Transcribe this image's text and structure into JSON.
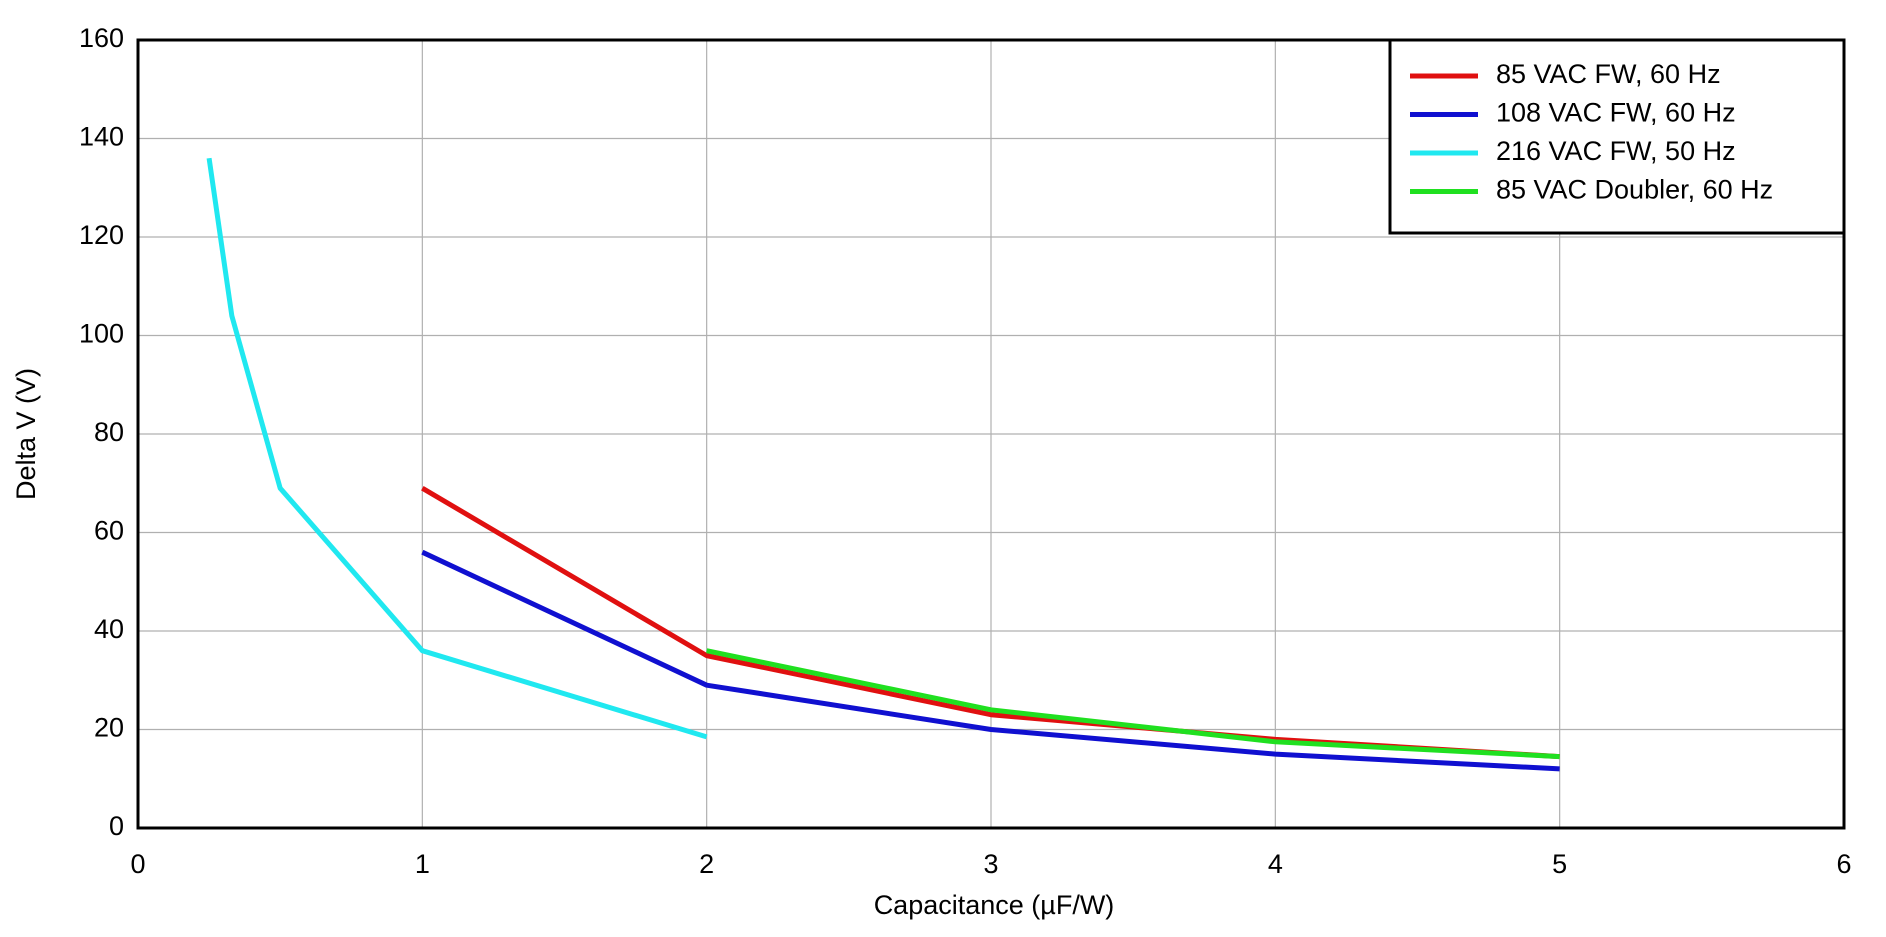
{
  "chart_data": {
    "type": "line",
    "x_label": "Capacitance (µF/W)",
    "y_label": "Delta V (V)",
    "xlim": [
      0,
      6
    ],
    "xticks": [
      0,
      1,
      2,
      3,
      4,
      5,
      6
    ],
    "ylim": [
      0,
      160
    ],
    "yticks": [
      0,
      20,
      40,
      60,
      80,
      100,
      120,
      140,
      160
    ],
    "grid": true,
    "legend": "upper right",
    "series": [
      {
        "name": "85 VAC FW, 60 Hz",
        "color": "#e01010",
        "x": [
          1,
          2,
          3,
          4,
          5
        ],
        "values": [
          69,
          35,
          23,
          18,
          14.5
        ]
      },
      {
        "name": "108 VAC FW, 60 Hz",
        "color": "#1010d0",
        "x": [
          1,
          2,
          3,
          4,
          5
        ],
        "values": [
          56,
          29,
          20,
          15,
          12
        ]
      },
      {
        "name": "216 VAC FW, 50 Hz",
        "color": "#20e8f0",
        "x": [
          0.25,
          0.33,
          0.5,
          1,
          2
        ],
        "values": [
          136,
          104,
          69,
          36,
          18.5
        ]
      },
      {
        "name": "85 VAC Doubler, 60 Hz",
        "color": "#20e020",
        "x": [
          2,
          3,
          4,
          5
        ],
        "values": [
          36,
          24,
          17.5,
          14.5
        ]
      }
    ]
  }
}
